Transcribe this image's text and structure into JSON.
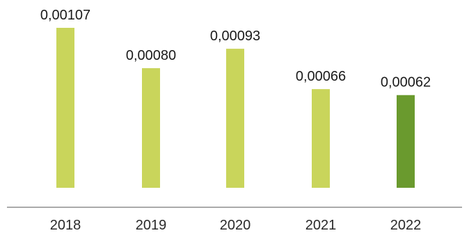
{
  "chart_data": {
    "type": "bar",
    "categories": [
      "2018",
      "2019",
      "2020",
      "2021",
      "2022"
    ],
    "values": [
      0.00107,
      0.0008,
      0.00093,
      0.00066,
      0.00062
    ],
    "value_labels": [
      "0,00107",
      "0,00080",
      "0,00093",
      "0,00066",
      "0,00062"
    ],
    "ylim": [
      0,
      0.00107
    ],
    "grid": false,
    "colors": {
      "default": "#c9d55b",
      "highlight": "#6a9a2e",
      "axis": "#555555"
    },
    "highlight_index": 4
  }
}
